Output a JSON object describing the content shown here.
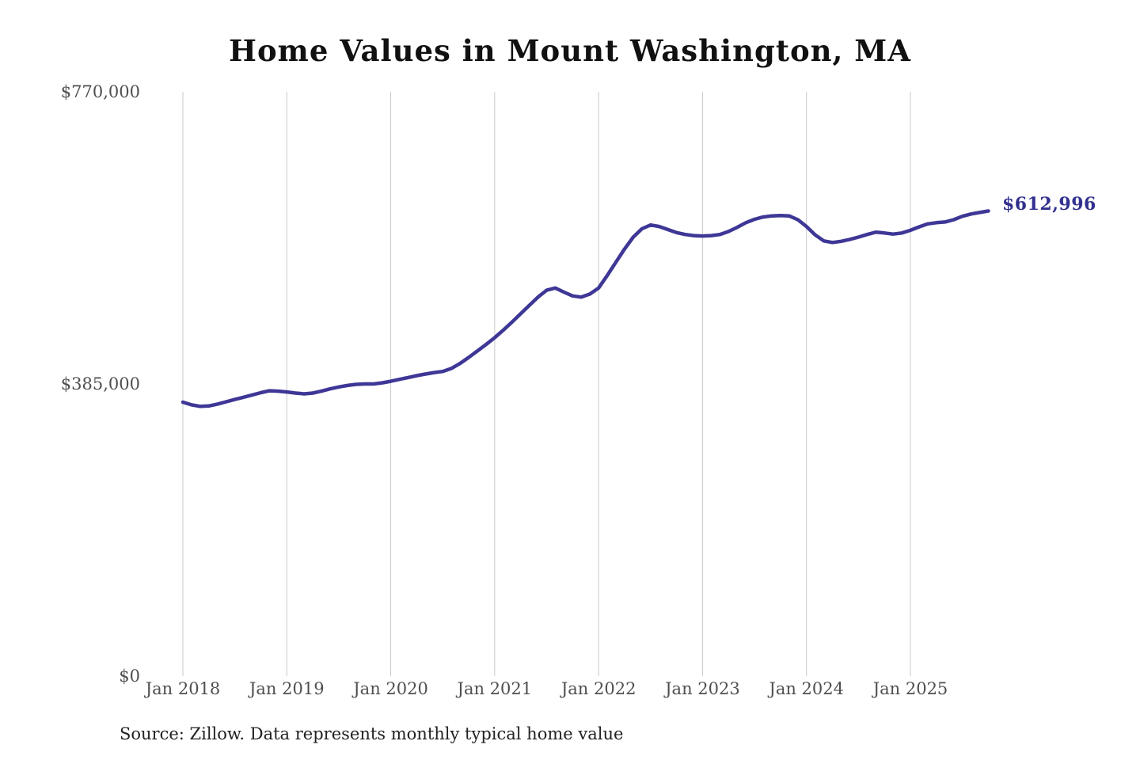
{
  "title": "Home Values in Mount Washington, MA",
  "source_note": "Source: Zillow. Data represents monthly typical home value",
  "end_value_label": "$612,996",
  "colors": {
    "background": "#ffffff",
    "line": "#3e3796",
    "end_label": "#32308f",
    "gridline": "#c9c9c9",
    "tick_text": "#4f4f4f",
    "title_text": "#111111",
    "source_text": "#222222"
  },
  "y_axis": {
    "tick_labels": [
      "$770,000",
      "$385,000",
      "$0"
    ],
    "tick_values": [
      770000,
      385000,
      0
    ]
  },
  "x_axis": {
    "tick_labels": [
      "Jan 2018",
      "Jan 2019",
      "Jan 2020",
      "Jan 2021",
      "Jan 2022",
      "Jan 2023",
      "Jan 2024",
      "Jan 2025"
    ]
  },
  "chart_data": {
    "type": "line",
    "title": "Home Values in Mount Washington, MA",
    "series_name": "Monthly typical home value ($)",
    "x_start": "Jan 2018",
    "x_end": "Oct 2025",
    "frequency": "monthly",
    "ylim": [
      0,
      770000
    ],
    "grid": "vertical-only",
    "legend": "none",
    "final_value": 612996,
    "values": [
      361000,
      357500,
      355500,
      356000,
      358500,
      361500,
      364500,
      367500,
      370500,
      373500,
      376000,
      375500,
      374500,
      373000,
      372000,
      373000,
      375500,
      378500,
      381000,
      383000,
      384500,
      385000,
      385000,
      386500,
      388500,
      391000,
      393500,
      396000,
      398000,
      400000,
      401500,
      405500,
      412000,
      420000,
      428500,
      437000,
      446000,
      456000,
      466500,
      477500,
      488500,
      499500,
      508500,
      511500,
      506000,
      501000,
      499500,
      503500,
      511500,
      528000,
      545500,
      563000,
      578500,
      589500,
      594500,
      592500,
      588500,
      584500,
      582000,
      580500,
      580000,
      580500,
      582000,
      586000,
      591500,
      597500,
      602000,
      605000,
      606500,
      607000,
      606500,
      601500,
      592500,
      581500,
      573500,
      571500,
      573000,
      575500,
      578500,
      582000,
      585000,
      584000,
      582500,
      584000,
      587500,
      592000,
      596000,
      597500,
      598500,
      601500,
      606000,
      609000,
      611000,
      612996
    ]
  }
}
